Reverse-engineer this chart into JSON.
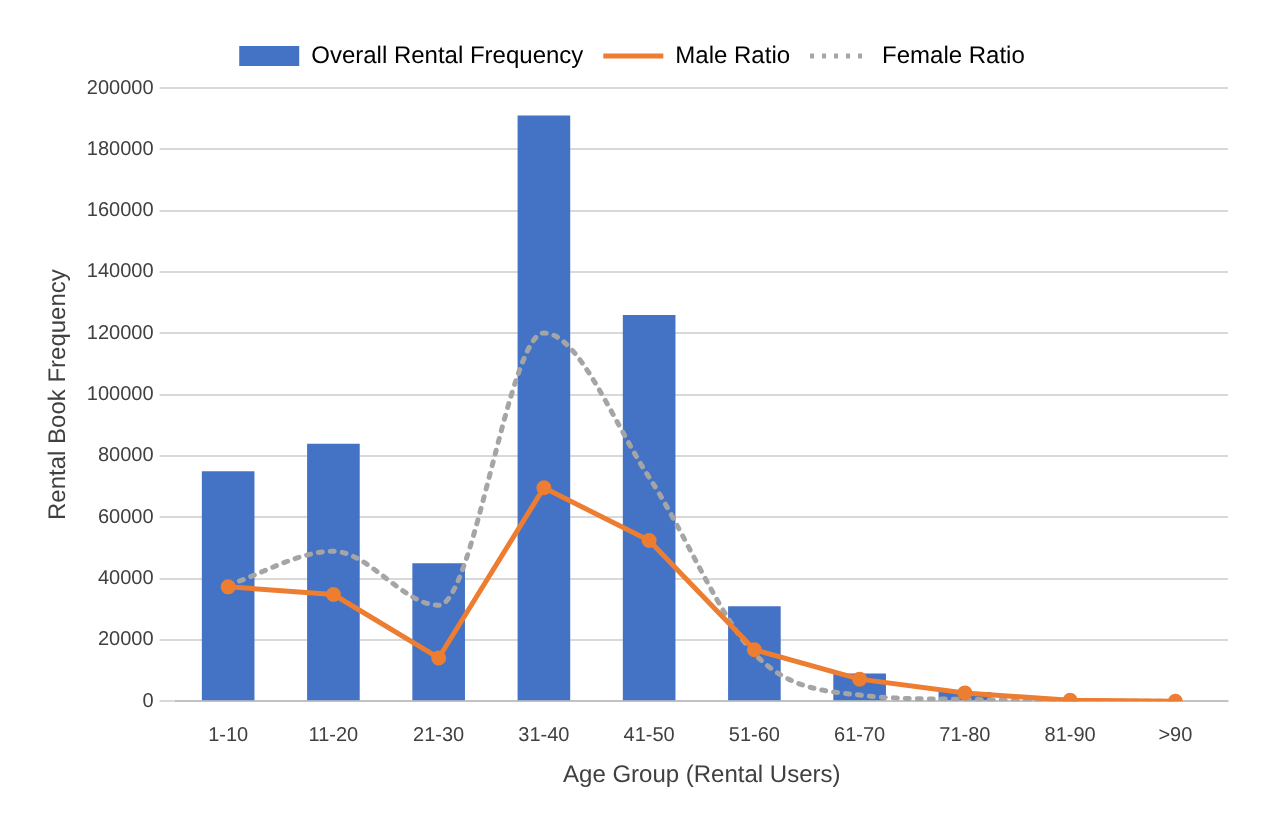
{
  "chart_data": {
    "type": "bar",
    "xlabel": "Age Group (Rental Users)",
    "ylabel": "Rental Book Frequency",
    "categories": [
      "1-10",
      "11-20",
      "21-30",
      "31-40",
      "41-50",
      "51-60",
      "61-70",
      "71-80",
      "81-90",
      ">90"
    ],
    "series": [
      {
        "name": "Overall Rental Frequency",
        "color": "#4472c4",
        "values": [
          75000,
          84000,
          45000,
          191000,
          126000,
          31000,
          9000,
          3000,
          null,
          0
        ]
      },
      {
        "name": "Male Ratio",
        "type": "line",
        "color": "#ed7d31",
        "marker": "circle",
        "line_style": "solid",
        "values": [
          37300,
          34800,
          14100,
          69600,
          52400,
          16800,
          7200,
          2700,
          300,
          0
        ]
      },
      {
        "name": "Female Ratio",
        "type": "line",
        "color": "#a5a5a5",
        "marker": "none",
        "line_style": "dotted",
        "values": [
          37900,
          48900,
          31300,
          120100,
          73000,
          15500,
          2000,
          600,
          0,
          0
        ]
      }
    ],
    "ylim": [
      0,
      200000
    ],
    "yticks": [
      0,
      20000,
      40000,
      60000,
      80000,
      100000,
      120000,
      140000,
      160000,
      180000,
      200000
    ],
    "grid": "y",
    "legend": "top"
  }
}
